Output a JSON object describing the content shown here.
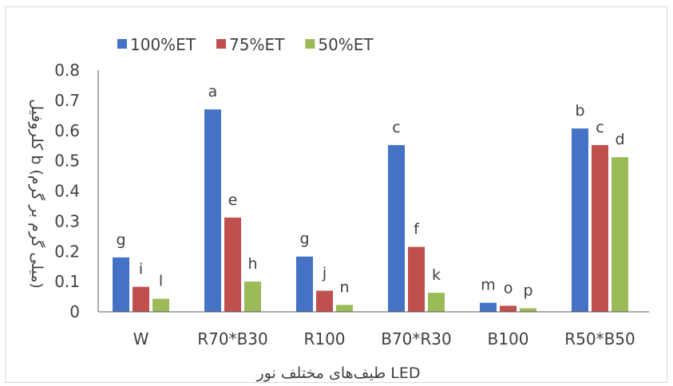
{
  "chart_data": {
    "type": "bar",
    "categories": [
      "W",
      "R70*B30",
      "R100",
      "B70*R30",
      "B100",
      "R50*B50"
    ],
    "series": [
      {
        "name": "100%ET",
        "color": "#4472c4",
        "values": [
          0.18,
          0.67,
          0.183,
          0.552,
          0.03,
          0.607
        ],
        "labels": [
          "g",
          "a",
          "g",
          "c",
          "m",
          "b"
        ]
      },
      {
        "name": "75%ET",
        "color": "#c0504d",
        "values": [
          0.083,
          0.312,
          0.07,
          0.215,
          0.02,
          0.552
        ],
        "labels": [
          "i",
          "e",
          "j",
          "f",
          "o",
          "c"
        ]
      },
      {
        "name": "50%ET",
        "color": "#9bbb59",
        "values": [
          0.043,
          0.1,
          0.023,
          0.063,
          0.012,
          0.512
        ],
        "labels": [
          "l",
          "h",
          "n",
          "k",
          "p",
          "d"
        ]
      }
    ],
    "xlabel": "طیف‌های مختلف نور LED",
    "ylabel": "کلروفیل b (میلی گرم بر گرم)",
    "ylim": [
      0,
      0.8
    ],
    "yticks": [
      "0",
      "0.1",
      "0.2",
      "0.3",
      "0.4",
      "0.5",
      "0.6",
      "0.7",
      "0.8"
    ],
    "grid": false,
    "legend": "top-left"
  }
}
